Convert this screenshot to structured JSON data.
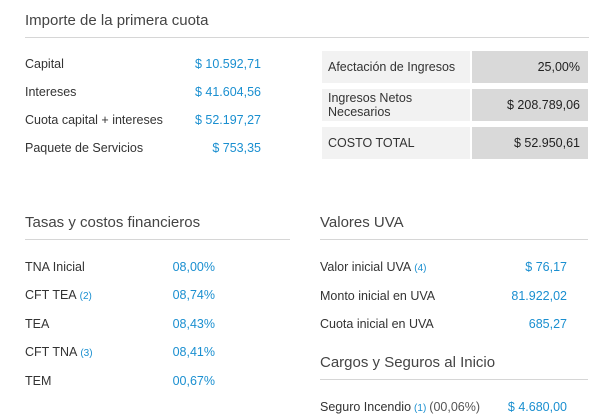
{
  "primera_cuota": {
    "title": "Importe de la primera cuota",
    "rows": [
      {
        "label": "Capital",
        "value": "$ 10.592,71"
      },
      {
        "label": "Intereses",
        "value": "$ 41.604,56"
      },
      {
        "label": "Cuota capital + intereses",
        "value": "$ 52.197,27"
      },
      {
        "label": "Paquete de Servicios",
        "value": "$ 753,35"
      }
    ]
  },
  "summary": [
    {
      "label": "Afectación de Ingresos",
      "value": "25,00%"
    },
    {
      "label": "Ingresos Netos Necesarios",
      "value": "$ 208.789,06"
    },
    {
      "label": "COSTO TOTAL",
      "value": "$ 52.950,61"
    }
  ],
  "tasas": {
    "title": "Tasas y costos financieros",
    "rows": [
      {
        "label": "TNA Inicial",
        "note": "",
        "value": "08,00%"
      },
      {
        "label": "CFT TEA",
        "note": "(2)",
        "value": "08,74%"
      },
      {
        "label": "TEA",
        "note": "",
        "value": "08,43%"
      },
      {
        "label": "CFT TNA",
        "note": "(3)",
        "value": "08,41%"
      },
      {
        "label": "TEM",
        "note": "",
        "value": "00,67%"
      }
    ]
  },
  "uva": {
    "title": "Valores UVA",
    "rows": [
      {
        "label": "Valor inicial UVA",
        "note": "(4)",
        "value": "$ 76,17"
      },
      {
        "label": "Monto inicial en UVA",
        "note": "",
        "value": "81.922,02"
      },
      {
        "label": "Cuota inicial en UVA",
        "note": "",
        "value": "685,27"
      }
    ]
  },
  "cargos": {
    "title": "Cargos y Seguros al Inicio",
    "rows": [
      {
        "label": "Seguro Incendio",
        "note": "(1)",
        "extra": "(00,06%)",
        "value": "$ 4.680,00"
      }
    ]
  }
}
